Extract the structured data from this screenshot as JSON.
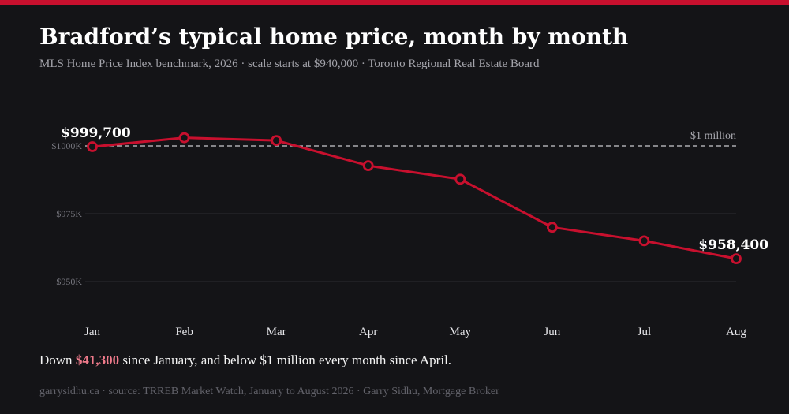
{
  "title": "Bradford’s typical home price, month by month",
  "subtitle": "MLS Home Price Index benchmark, 2026 · scale starts at $940,000 · Toronto Regional Real Estate Board",
  "summary": {
    "prefix": "Down ",
    "highlight": "$41,300",
    "suffix": " since January, and below $1 million every month since April."
  },
  "footer": "garrysidhu.ca · source: TRREB Market Watch, January to August 2026 · Garry Sidhu, Mortgage Broker",
  "colors": {
    "accent": "#c8102e",
    "highlight_text": "#f07b8c",
    "background": "#141417"
  },
  "chart_data": {
    "type": "line",
    "categories": [
      "Jan",
      "Feb",
      "Mar",
      "Apr",
      "May",
      "Jun",
      "Jul",
      "Aug"
    ],
    "values": [
      999700,
      1003000,
      1002000,
      992700,
      987700,
      970000,
      965000,
      958400
    ],
    "ylim": [
      940000,
      1000000
    ],
    "yticks": [
      {
        "value": 1000000,
        "label": "$1000K"
      },
      {
        "value": 975000,
        "label": "$975K"
      },
      {
        "value": 950000,
        "label": "$950K"
      }
    ],
    "reference_line": {
      "value": 1000000,
      "label": "$1 million"
    },
    "point_labels": [
      {
        "index": 0,
        "label": "$999,700"
      },
      {
        "index": 7,
        "label": "$958,400"
      }
    ],
    "grid": true,
    "legend": "none"
  }
}
